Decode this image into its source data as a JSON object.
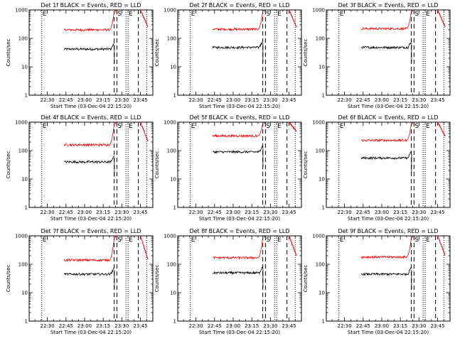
{
  "colors": {
    "background": "#ffffff",
    "axes": "#000000",
    "events": "#000000",
    "lld": "#ff0000"
  },
  "chart_data": {
    "type": "line",
    "layout": "3x3 grid of small-multiple panels",
    "y_scale": "log",
    "ylim": [
      1,
      1000
    ],
    "y_ticks": [
      1,
      10,
      100,
      1000
    ],
    "y_tick_labels": [
      "1",
      "10",
      "100",
      "1000"
    ],
    "ylabel": "Counts/sec",
    "xlabel": "Start Time (03-Dec-04 22:15:20)",
    "x_range": [
      "22:15:20",
      "23:55:00"
    ],
    "x_ticks": [
      "22:30",
      "22:45",
      "23:00",
      "23:15",
      "23:30",
      "23:45"
    ],
    "grid": false,
    "legend": "none (series identified in title)",
    "vertical_markers": [
      {
        "time": "22:25:30",
        "style": "dotted",
        "label": "E"
      },
      {
        "time": "23:23:50",
        "style": "dashed",
        "label": ""
      },
      {
        "time": "23:26:00",
        "style": "dashed",
        "label": "S"
      },
      {
        "time": "23:33:20",
        "style": "dotted",
        "label": ""
      },
      {
        "time": "23:35:00",
        "style": "dotted",
        "label": "E"
      },
      {
        "time": "23:43:20",
        "style": "dashed",
        "label": ""
      },
      {
        "time": "23:50:00",
        "style": "dotted",
        "label": ""
      }
    ],
    "panels": [
      {
        "title": "Det 1f BLACK = Events, RED = LLD",
        "series": [
          {
            "color": "#000000",
            "segments": [
              {
                "start": "22:43:30",
                "end": "23:24:00",
                "level": 42
              }
            ]
          },
          {
            "color": "#ff0000",
            "segments": [
              {
                "start": "22:43:30",
                "end": "23:24:00",
                "level": 200,
                "rise_to": 1000
              },
              {
                "start": "23:45:00",
                "end": "23:51:00",
                "from": 1000,
                "to": 260
              }
            ]
          }
        ]
      },
      {
        "title": "Det 2f BLACK = Events, RED = LLD",
        "series": [
          {
            "color": "#000000",
            "segments": [
              {
                "start": "22:43:30",
                "end": "23:24:00",
                "level": 48
              }
            ]
          },
          {
            "color": "#ff0000",
            "segments": [
              {
                "start": "22:43:30",
                "end": "23:24:00",
                "level": 210,
                "rise_to": 1000
              },
              {
                "start": "23:45:00",
                "end": "23:51:00",
                "from": 1000,
                "to": 250
              }
            ]
          }
        ]
      },
      {
        "title": "Det 3f BLACK = Events, RED = LLD",
        "series": [
          {
            "color": "#000000",
            "segments": [
              {
                "start": "22:43:30",
                "end": "23:24:00",
                "level": 48
              }
            ]
          },
          {
            "color": "#ff0000",
            "segments": [
              {
                "start": "22:43:30",
                "end": "23:24:00",
                "level": 220,
                "rise_to": 1000
              },
              {
                "start": "23:45:00",
                "end": "23:51:00",
                "from": 1000,
                "to": 260
              }
            ]
          }
        ]
      },
      {
        "title": "Det 4f BLACK = Events, RED = LLD",
        "series": [
          {
            "color": "#000000",
            "segments": [
              {
                "start": "22:43:30",
                "end": "23:24:00",
                "level": 40
              }
            ]
          },
          {
            "color": "#ff0000",
            "segments": [
              {
                "start": "22:43:30",
                "end": "23:24:00",
                "level": 160,
                "rise_to": 1000
              },
              {
                "start": "23:45:00",
                "end": "23:51:00",
                "from": 1000,
                "to": 220
              }
            ]
          }
        ]
      },
      {
        "title": "Det 5f BLACK = Events, RED = LLD",
        "series": [
          {
            "color": "#000000",
            "segments": [
              {
                "start": "22:43:30",
                "end": "23:24:00",
                "level": 90
              }
            ]
          },
          {
            "color": "#ff0000",
            "segments": [
              {
                "start": "22:43:30",
                "end": "23:24:00",
                "level": 330,
                "rise_to": 1000
              },
              {
                "start": "23:45:00",
                "end": "23:51:00",
                "from": 1000,
                "to": 480
              }
            ]
          }
        ]
      },
      {
        "title": "Det 6f BLACK = Events, RED = LLD",
        "series": [
          {
            "color": "#000000",
            "segments": [
              {
                "start": "22:43:30",
                "end": "23:24:00",
                "level": 55
              }
            ]
          },
          {
            "color": "#ff0000",
            "segments": [
              {
                "start": "22:43:30",
                "end": "23:24:00",
                "level": 230,
                "rise_to": 1000
              },
              {
                "start": "23:45:00",
                "end": "23:51:00",
                "from": 1000,
                "to": 330
              }
            ]
          }
        ]
      },
      {
        "title": "Det 7f BLACK = Events, RED = LLD",
        "series": [
          {
            "color": "#000000",
            "segments": [
              {
                "start": "22:43:30",
                "end": "23:24:00",
                "level": 45
              }
            ]
          },
          {
            "color": "#ff0000",
            "segments": [
              {
                "start": "22:43:30",
                "end": "23:24:00",
                "level": 140,
                "rise_to": 1000
              },
              {
                "start": "23:45:00",
                "end": "23:51:00",
                "from": 1000,
                "to": 150
              }
            ]
          }
        ]
      },
      {
        "title": "Det 8f BLACK = Events, RED = LLD",
        "series": [
          {
            "color": "#000000",
            "segments": [
              {
                "start": "22:43:30",
                "end": "23:24:00",
                "level": 50
              }
            ]
          },
          {
            "color": "#ff0000",
            "segments": [
              {
                "start": "22:43:30",
                "end": "23:24:00",
                "level": 170,
                "rise_to": 1000
              },
              {
                "start": "23:45:00",
                "end": "23:51:00",
                "from": 1000,
                "to": 200
              }
            ]
          }
        ]
      },
      {
        "title": "Det 9f BLACK = Events, RED = LLD",
        "series": [
          {
            "color": "#000000",
            "segments": [
              {
                "start": "22:43:30",
                "end": "23:24:00",
                "level": 45
              }
            ]
          },
          {
            "color": "#ff0000",
            "segments": [
              {
                "start": "22:43:30",
                "end": "23:24:00",
                "level": 180,
                "rise_to": 1000
              },
              {
                "start": "23:45:00",
                "end": "23:51:00",
                "from": 1000,
                "to": 210
              }
            ]
          }
        ]
      }
    ]
  }
}
